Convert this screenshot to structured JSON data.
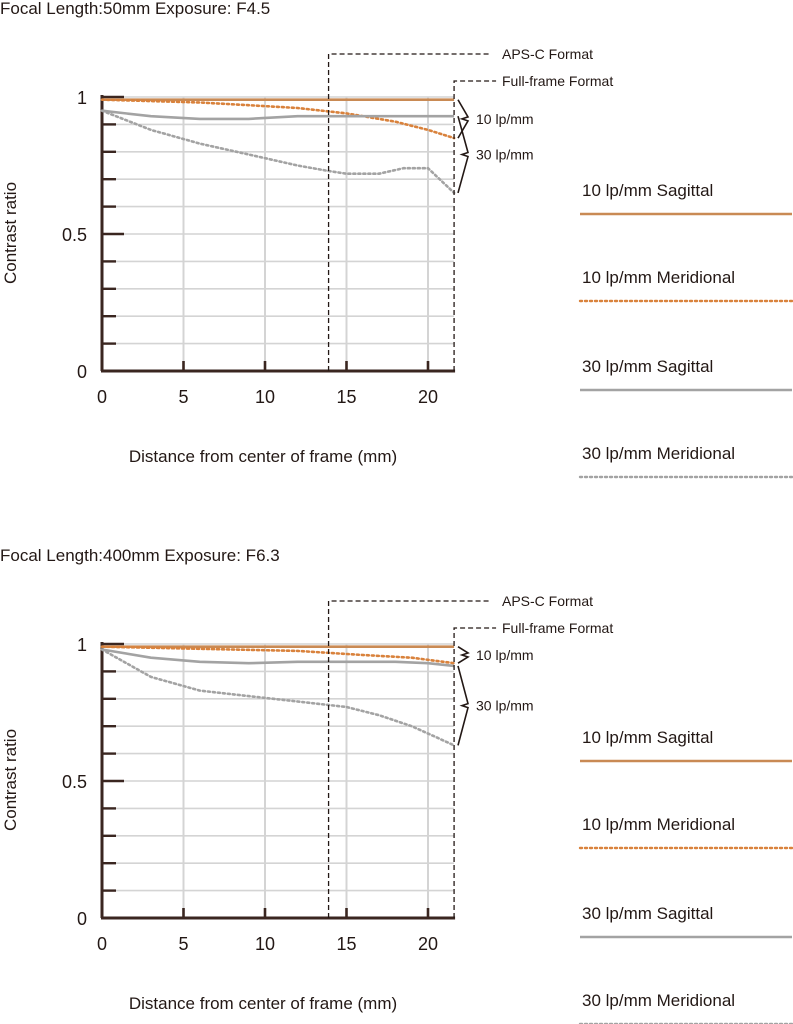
{
  "colors": {
    "sagittal_10": "#c98a54",
    "meridional_10": "#d9823c",
    "sagittal_30": "#a3a3a3",
    "meridional_30": "#a3a3a3",
    "axis": "#3a2620",
    "grid": "#d4d4d4",
    "text": "#231815"
  },
  "legend": {
    "items": [
      {
        "label": "10 lp/mm Sagittal",
        "style": "solid",
        "color": "#c98a54"
      },
      {
        "label": "10 lp/mm Meridional",
        "style": "dotted",
        "color": "#d9823c"
      },
      {
        "label": "30 lp/mm Sagittal",
        "style": "solid",
        "color": "#a3a3a3"
      },
      {
        "label": "30 lp/mm Meridional",
        "style": "dotted",
        "color": "#a3a3a3"
      }
    ]
  },
  "chart_data": [
    {
      "type": "line",
      "title": "Focal Length:50mm   Exposure: F4.5",
      "xlabel": "Distance from center of frame (mm)",
      "ylabel": "Contrast ratio",
      "xlim": [
        0,
        21.6
      ],
      "ylim": [
        0,
        1
      ],
      "xticks": [
        "0",
        "5",
        "10",
        "15",
        "20"
      ],
      "yticks": [
        "0",
        "0.5",
        "1"
      ],
      "grid": true,
      "annotations": {
        "apsc": "APS-C Format",
        "apsc_x": 13.9,
        "fullframe": "Full-frame Format",
        "fullframe_x": 21.6,
        "group10": "10 lp/mm",
        "group30": "30 lp/mm"
      },
      "series": [
        {
          "name": "10 lp/mm Sagittal",
          "x": [
            0,
            5,
            10,
            15,
            20,
            21.6
          ],
          "y": [
            0.99,
            0.99,
            0.99,
            0.99,
            0.99,
            0.99
          ]
        },
        {
          "name": "10 lp/mm Meridional",
          "x": [
            0,
            3,
            6,
            9,
            12,
            15,
            18,
            20,
            21.6
          ],
          "y": [
            0.99,
            0.985,
            0.98,
            0.97,
            0.96,
            0.94,
            0.91,
            0.88,
            0.85
          ]
        },
        {
          "name": "30 lp/mm Sagittal",
          "x": [
            0,
            3,
            6,
            9,
            12,
            15,
            18,
            20,
            21.6
          ],
          "y": [
            0.95,
            0.93,
            0.92,
            0.92,
            0.93,
            0.93,
            0.93,
            0.93,
            0.93
          ]
        },
        {
          "name": "30 lp/mm Meridional",
          "x": [
            0,
            3,
            6,
            9,
            12,
            13.9,
            15,
            17,
            18.5,
            20,
            21.6
          ],
          "y": [
            0.95,
            0.88,
            0.83,
            0.79,
            0.75,
            0.73,
            0.72,
            0.72,
            0.74,
            0.74,
            0.65
          ]
        }
      ]
    },
    {
      "type": "line",
      "title": "Focal Length:400mm  Exposure: F6.3",
      "xlabel": "Distance from center of frame (mm)",
      "ylabel": "Contrast ratio",
      "xlim": [
        0,
        21.6
      ],
      "ylim": [
        0,
        1
      ],
      "xticks": [
        "0",
        "5",
        "10",
        "15",
        "20"
      ],
      "yticks": [
        "0",
        "0.5",
        "1"
      ],
      "grid": true,
      "annotations": {
        "apsc": "APS-C Format",
        "apsc_x": 13.9,
        "fullframe": "Full-frame Format",
        "fullframe_x": 21.6,
        "group10": "10 lp/mm",
        "group30": "30 lp/mm"
      },
      "series": [
        {
          "name": "10 lp/mm Sagittal",
          "x": [
            0,
            5,
            10,
            15,
            20,
            21.6
          ],
          "y": [
            0.99,
            0.99,
            0.99,
            0.99,
            0.99,
            0.99
          ]
        },
        {
          "name": "10 lp/mm Meridional",
          "x": [
            0,
            4,
            8,
            12,
            16,
            19,
            21.6
          ],
          "y": [
            0.99,
            0.985,
            0.98,
            0.975,
            0.96,
            0.95,
            0.93
          ]
        },
        {
          "name": "30 lp/mm Sagittal",
          "x": [
            0,
            3,
            6,
            9,
            12,
            15,
            18,
            20,
            21.6
          ],
          "y": [
            0.98,
            0.95,
            0.935,
            0.93,
            0.935,
            0.935,
            0.935,
            0.93,
            0.92
          ]
        },
        {
          "name": "30 lp/mm Meridional",
          "x": [
            0,
            3,
            6,
            9,
            12,
            15,
            17,
            19,
            20.5,
            21.6
          ],
          "y": [
            0.98,
            0.88,
            0.83,
            0.81,
            0.79,
            0.77,
            0.74,
            0.7,
            0.66,
            0.63
          ]
        }
      ]
    }
  ]
}
